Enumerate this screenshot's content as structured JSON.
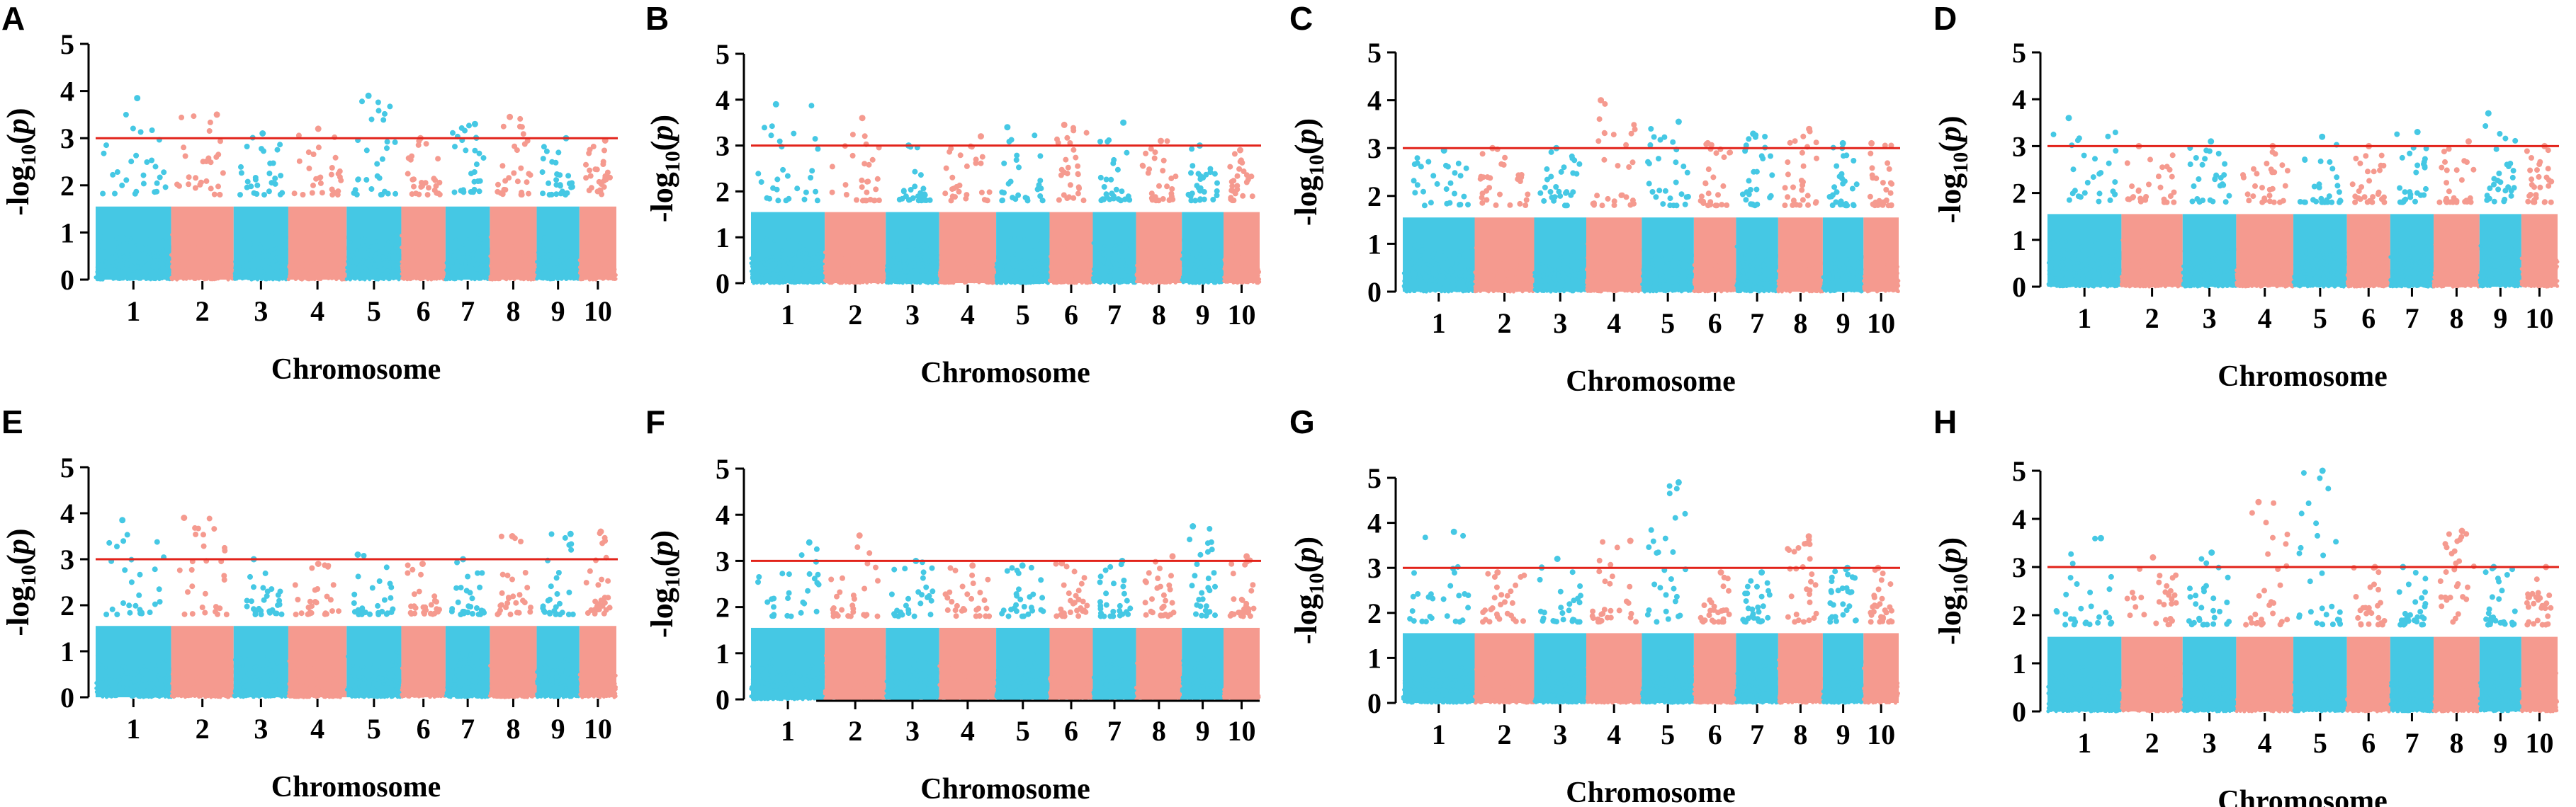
{
  "colors": {
    "blue": "#45c8e4",
    "salmon": "#f59a8f",
    "threshold": "#e2231a",
    "axis": "#000000"
  },
  "chart_data": [
    {
      "type": "scatter",
      "panel": "A",
      "title": "",
      "ylabel": "-log10(p)",
      "xlabel": "Chromosome",
      "categories": [
        "1",
        "2",
        "3",
        "4",
        "5",
        "6",
        "7",
        "8",
        "9",
        "10"
      ],
      "ylim": [
        0,
        5
      ],
      "yticks": [
        "0",
        "1",
        "2",
        "3",
        "4",
        "5"
      ],
      "threshold": 3,
      "peaks": [
        3.85,
        3.5,
        3.1,
        3.2,
        3.9,
        3.0,
        3.3,
        3.45,
        3.0,
        2.95
      ],
      "seed": 11
    },
    {
      "type": "scatter",
      "panel": "B",
      "title": "",
      "ylabel": "-log10(p)",
      "xlabel": "Chromosome",
      "categories": [
        "1",
        "2",
        "3",
        "4",
        "5",
        "6",
        "7",
        "8",
        "9",
        "10"
      ],
      "ylim": [
        0,
        5
      ],
      "yticks": [
        "0",
        "1",
        "2",
        "3",
        "4",
        "5"
      ],
      "threshold": 3,
      "peaks": [
        3.9,
        3.6,
        3.0,
        3.2,
        3.4,
        3.45,
        3.5,
        3.1,
        3.0,
        2.9
      ],
      "seed": 23
    },
    {
      "type": "scatter",
      "panel": "C",
      "title": "",
      "ylabel": "-log10(p)",
      "xlabel": "Chromosome",
      "categories": [
        "1",
        "2",
        "3",
        "4",
        "5",
        "6",
        "7",
        "8",
        "9",
        "10"
      ],
      "ylim": [
        0,
        5
      ],
      "yticks": [
        "0",
        "1",
        "2",
        "3",
        "4",
        "5"
      ],
      "threshold": 3,
      "peaks": [
        2.95,
        3.0,
        3.0,
        4.0,
        3.55,
        3.1,
        3.3,
        3.4,
        3.1,
        3.1
      ],
      "seed": 37
    },
    {
      "type": "scatter",
      "panel": "D",
      "title": "",
      "ylabel": "-log10(p)",
      "xlabel": "Chromosome",
      "categories": [
        "1",
        "2",
        "3",
        "4",
        "5",
        "6",
        "7",
        "8",
        "9",
        "10"
      ],
      "ylim": [
        0,
        5
      ],
      "yticks": [
        "0",
        "1",
        "2",
        "3",
        "4",
        "5"
      ],
      "threshold": 3,
      "peaks": [
        3.6,
        3.0,
        3.1,
        3.0,
        3.2,
        3.0,
        3.3,
        3.1,
        3.7,
        3.0
      ],
      "seed": 41
    },
    {
      "type": "scatter",
      "panel": "E",
      "title": "",
      "ylabel": "-log10(p)",
      "xlabel": "Chromosome",
      "categories": [
        "1",
        "2",
        "3",
        "4",
        "5",
        "6",
        "7",
        "8",
        "9",
        "10"
      ],
      "ylim": [
        0,
        5
      ],
      "yticks": [
        "0",
        "1",
        "2",
        "3",
        "4",
        "5"
      ],
      "threshold": 3,
      "peaks": [
        3.85,
        3.9,
        3.0,
        2.9,
        3.1,
        2.9,
        3.0,
        3.5,
        3.55,
        3.6
      ],
      "seed": 53
    },
    {
      "type": "scatter",
      "panel": "F",
      "title": "",
      "ylabel": "-log10(p)",
      "xlabel": "Chromosome",
      "categories": [
        "1",
        "2",
        "3",
        "4",
        "5",
        "6",
        "7",
        "8",
        "9",
        "10"
      ],
      "ylim": [
        0,
        5
      ],
      "yticks": [
        "0",
        "1",
        "2",
        "3",
        "4",
        "5"
      ],
      "threshold": 3,
      "peaks": [
        3.4,
        3.55,
        3.0,
        2.9,
        2.9,
        2.95,
        3.0,
        3.1,
        3.75,
        3.1
      ],
      "seed": 67
    },
    {
      "type": "scatter",
      "panel": "G",
      "title": "",
      "ylabel": "-log10(p)",
      "xlabel": "Chromosome",
      "categories": [
        "1",
        "2",
        "3",
        "4",
        "5",
        "6",
        "7",
        "8",
        "9",
        "10"
      ],
      "ylim": [
        0,
        5
      ],
      "yticks": [
        "0",
        "1",
        "2",
        "3",
        "4",
        "5"
      ],
      "threshold": 3,
      "peaks": [
        3.8,
        2.9,
        3.2,
        3.6,
        4.9,
        2.9,
        2.9,
        3.7,
        3.0,
        3.0
      ],
      "seed": 79
    },
    {
      "type": "scatter",
      "panel": "H",
      "title": "",
      "ylabel": "-log10(p)",
      "xlabel": "Chromosome",
      "categories": [
        "1",
        "2",
        "3",
        "4",
        "5",
        "6",
        "7",
        "8",
        "9",
        "10"
      ],
      "ylim": [
        0,
        5
      ],
      "yticks": [
        "0",
        "1",
        "2",
        "3",
        "4",
        "5"
      ],
      "threshold": 3,
      "peaks": [
        3.6,
        3.2,
        3.3,
        4.35,
        5.0,
        3.0,
        3.0,
        3.75,
        3.0,
        3.0
      ],
      "seed": 97
    }
  ]
}
